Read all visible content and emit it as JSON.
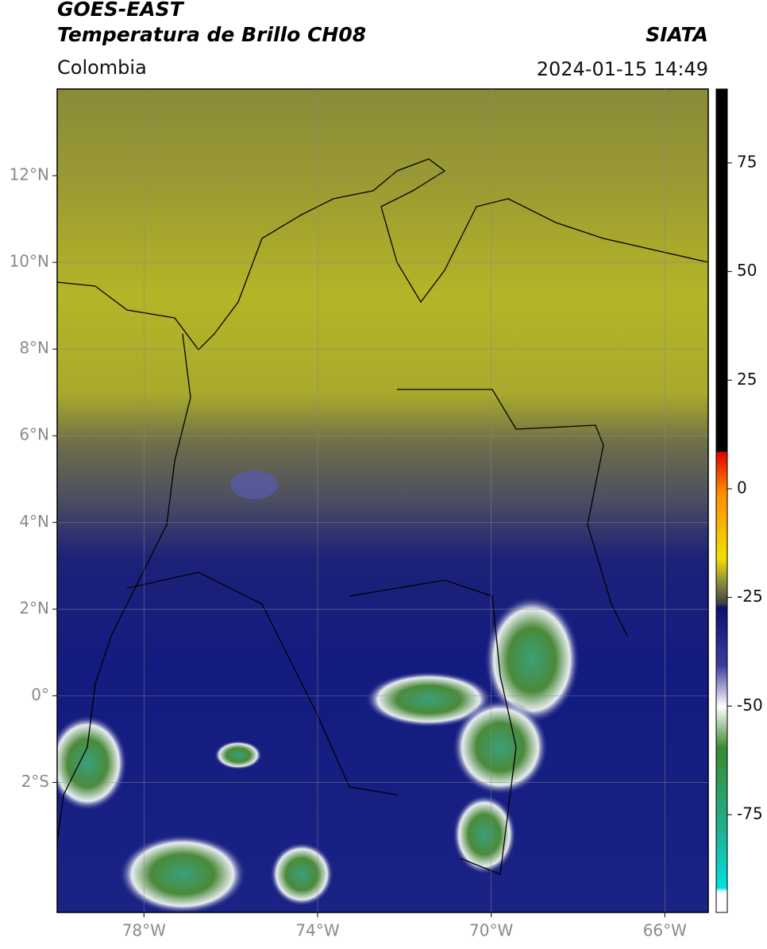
{
  "header": {
    "title": "GOES-EAST",
    "subtitle": "Temperatura de Brillo CH08",
    "region": "Colombia",
    "source": "SIATA",
    "timestamp": "2024-01-15 14:49"
  },
  "map": {
    "lon_range": [
      -80,
      -65
    ],
    "lat_range": [
      -5,
      14
    ],
    "lat_ticks": [
      {
        "value": 12,
        "label": "12°N"
      },
      {
        "value": 10,
        "label": "10°N"
      },
      {
        "value": 8,
        "label": "8°N"
      },
      {
        "value": 6,
        "label": "6°N"
      },
      {
        "value": 4,
        "label": "4°N"
      },
      {
        "value": 2,
        "label": "2°N"
      },
      {
        "value": 0,
        "label": "0°"
      },
      {
        "value": -2,
        "label": "2°S"
      }
    ],
    "lon_ticks": [
      {
        "value": -78,
        "label": "78°W"
      },
      {
        "value": -74,
        "label": "74°W"
      },
      {
        "value": -70,
        "label": "70°W"
      },
      {
        "value": -66,
        "label": "66°W"
      }
    ]
  },
  "colorbar": {
    "range": [
      -97.5,
      92
    ],
    "ticks": [
      75,
      50,
      25,
      0,
      -25,
      -50,
      -75
    ]
  }
}
